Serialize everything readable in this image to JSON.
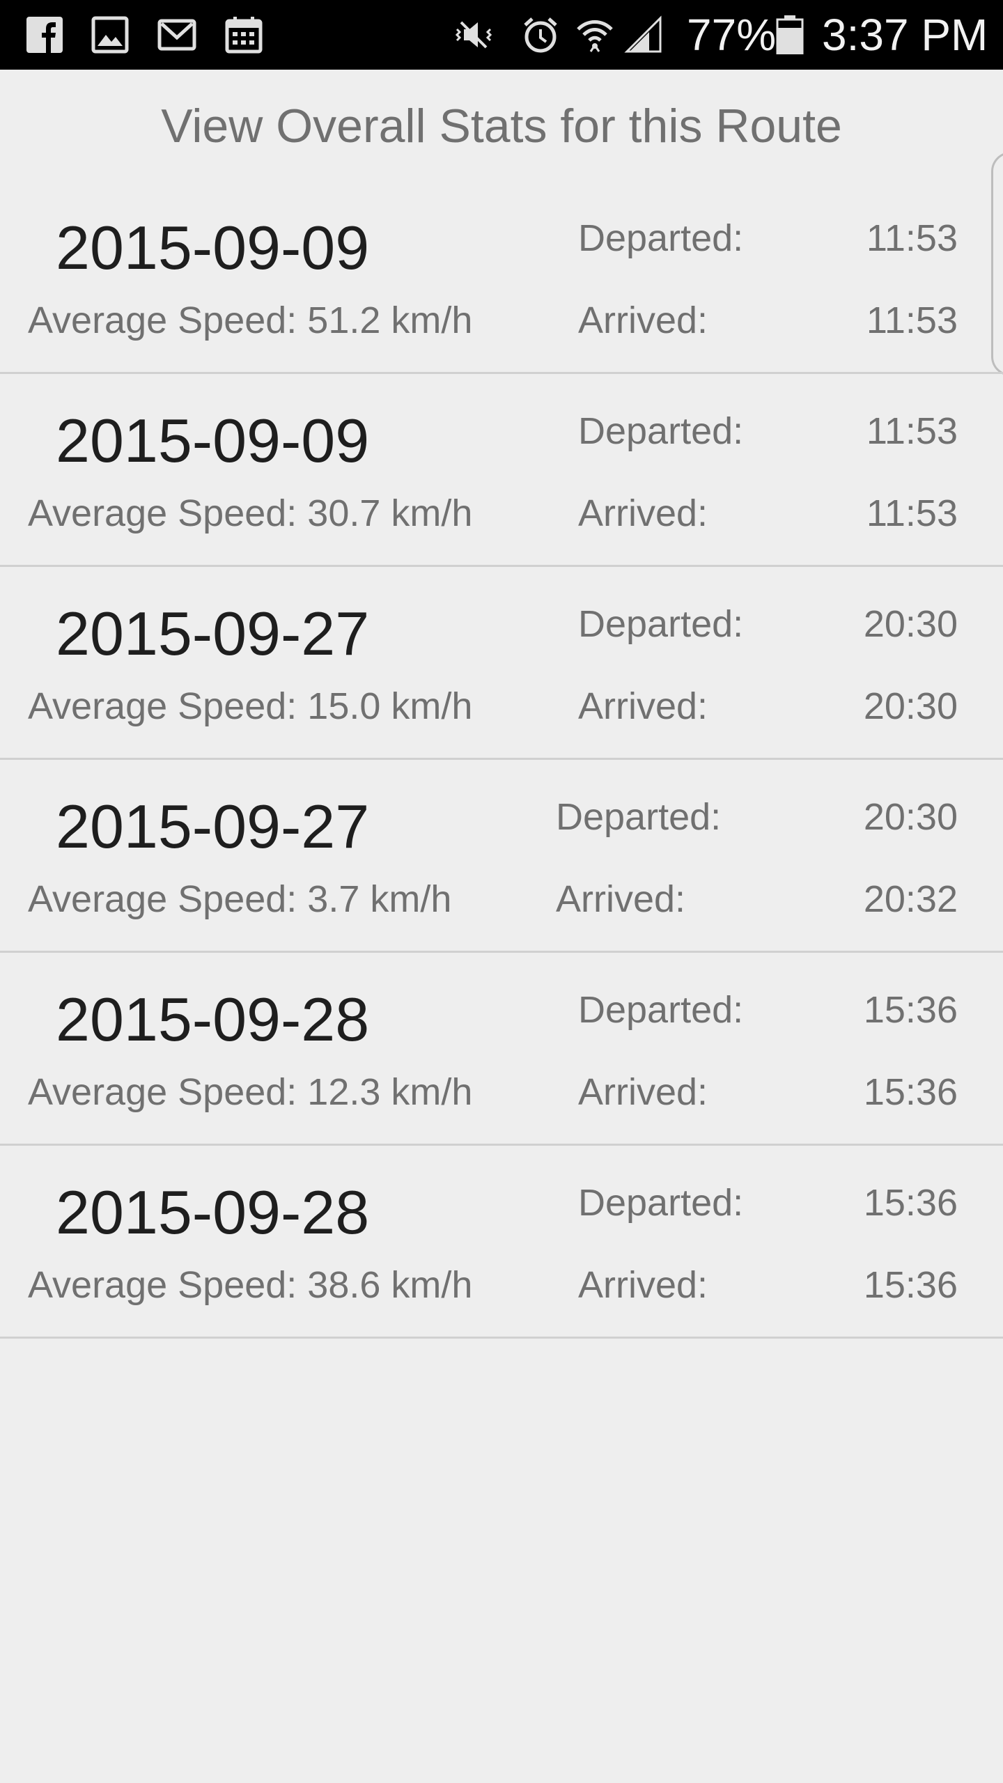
{
  "status_bar": {
    "left_icons": [
      "facebook-icon",
      "gallery-icon",
      "gmail-icon",
      "calendar-icon"
    ],
    "right_icons": [
      "vibrate-mute-icon",
      "alarm-icon",
      "wifi-icon",
      "signal-icon",
      "battery-icon"
    ],
    "battery": "77%",
    "time": "3:37 PM"
  },
  "page": {
    "title": "View Overall Stats for this Route"
  },
  "trips": [
    {
      "date": "2015-09-09",
      "speed": "Average Speed: 51.2 km/h",
      "departed_label": "Departed:",
      "departed": "11:53",
      "arrived_label": "Arrived:",
      "arrived": "11:53"
    },
    {
      "date": "2015-09-09",
      "speed": "Average Speed: 30.7 km/h",
      "departed_label": "Departed:",
      "departed": "11:53",
      "arrived_label": "Arrived:",
      "arrived": "11:53"
    },
    {
      "date": "2015-09-27",
      "speed": "Average Speed: 15.0 km/h",
      "departed_label": "Departed:",
      "departed": "20:30",
      "arrived_label": "Arrived:",
      "arrived": "20:30"
    },
    {
      "date": "2015-09-27",
      "speed": "Average Speed: 3.7 km/h",
      "departed_label": "Departed:",
      "departed": "20:30",
      "arrived_label": "Arrived:",
      "arrived": "20:32"
    },
    {
      "date": "2015-09-28",
      "speed": "Average Speed: 12.3 km/h",
      "departed_label": "Departed:",
      "departed": "15:36",
      "arrived_label": "Arrived:",
      "arrived": "15:36"
    },
    {
      "date": "2015-09-28",
      "speed": "Average Speed: 38.6 km/h",
      "departed_label": "Departed:",
      "departed": "15:36",
      "arrived_label": "Arrived:",
      "arrived": "15:36"
    }
  ],
  "colors": {
    "background": "#eeeeee",
    "status_bar": "#000000",
    "primary_text": "#1e1e1e",
    "secondary_text": "#707070",
    "divider": "#d0d0d0"
  }
}
